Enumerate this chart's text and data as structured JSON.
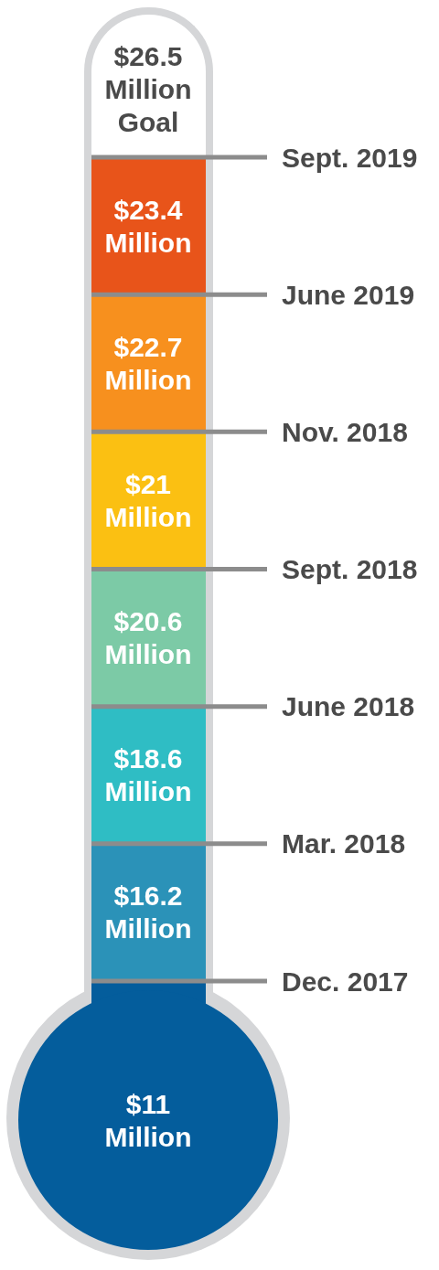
{
  "chart_data": {
    "type": "other",
    "annotations": [
      "$26.5 Million Goal"
    ],
    "categories": [
      "Sept. 2019",
      "June 2019",
      "Nov. 2018",
      "Sept. 2018",
      "June 2018",
      "Mar. 2018",
      "Dec. 2017"
    ],
    "values": [
      23.4,
      22.7,
      21,
      20.6,
      18.6,
      16.2,
      11
    ],
    "value_labels": [
      "$23.4 Million",
      "$22.7 Million",
      "$21 Million",
      "$20.6 Million",
      "$18.6 Million",
      "$16.2 Million",
      "$11 Million"
    ],
    "colors": [
      "#e8541a",
      "#f7901e",
      "#fbc012",
      "#7ccaa6",
      "#2fbdc4",
      "#2b92b8",
      "#045d9c"
    ]
  }
}
